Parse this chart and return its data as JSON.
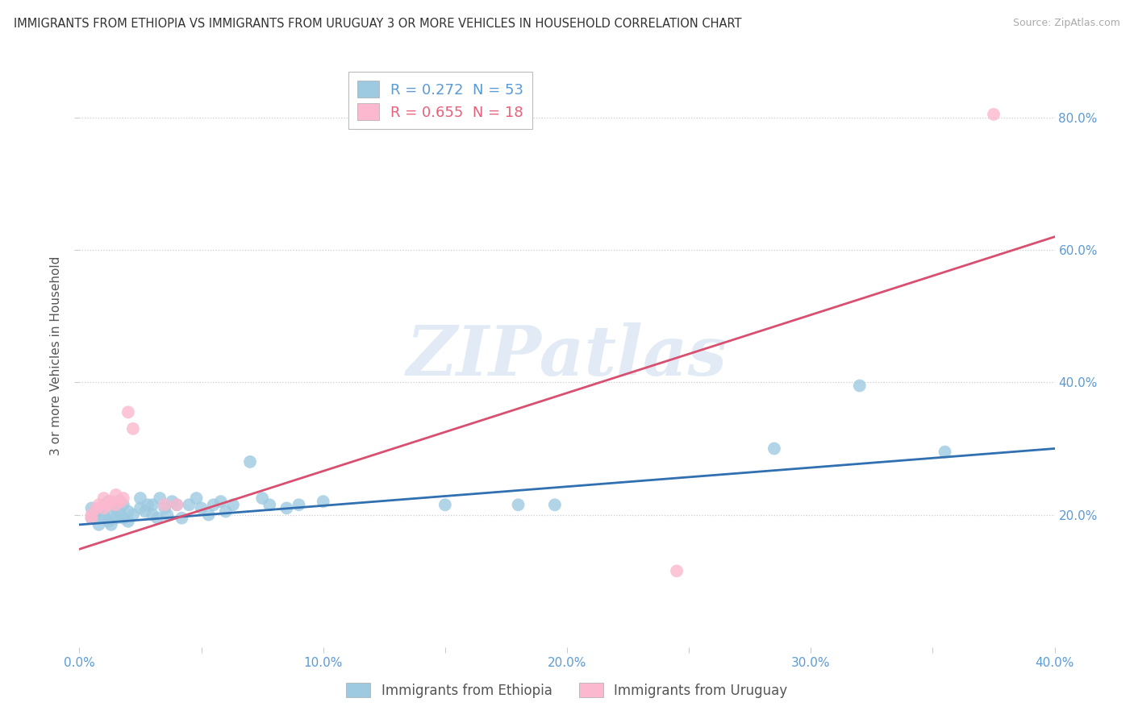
{
  "title": "IMMIGRANTS FROM ETHIOPIA VS IMMIGRANTS FROM URUGUAY 3 OR MORE VEHICLES IN HOUSEHOLD CORRELATION CHART",
  "source": "Source: ZipAtlas.com",
  "xlabel": "",
  "ylabel": "3 or more Vehicles in Household",
  "xlim": [
    0.0,
    0.4
  ],
  "ylim": [
    0.0,
    0.88
  ],
  "xticks": [
    0.0,
    0.1,
    0.2,
    0.3,
    0.4
  ],
  "yticks": [
    0.2,
    0.4,
    0.6,
    0.8
  ],
  "ytick_labels": [
    "20.0%",
    "40.0%",
    "60.0%",
    "80.0%"
  ],
  "xtick_labels": [
    "0.0%",
    "",
    "10.0%",
    "",
    "20.0%",
    "",
    "30.0%",
    "",
    "40.0%"
  ],
  "xticks_all": [
    0.0,
    0.05,
    0.1,
    0.15,
    0.2,
    0.25,
    0.3,
    0.35,
    0.4
  ],
  "watermark": "ZIPatlas",
  "legend_entries": [
    {
      "label": "R = 0.272  N = 53",
      "color": "#5b9bd5"
    },
    {
      "label": "R = 0.655  N = 18",
      "color": "#e8607a"
    }
  ],
  "ethiopia_color": "#9ecae1",
  "uruguay_color": "#fcb8ce",
  "ethiopia_line_color": "#3070b0",
  "uruguay_line_color": "#d94f70",
  "background_color": "#ffffff",
  "grid_color": "#cccccc",
  "ethiopia_scatter": [
    [
      0.005,
      0.195
    ],
    [
      0.005,
      0.21
    ],
    [
      0.007,
      0.205
    ],
    [
      0.008,
      0.185
    ],
    [
      0.01,
      0.2
    ],
    [
      0.01,
      0.215
    ],
    [
      0.01,
      0.195
    ],
    [
      0.012,
      0.22
    ],
    [
      0.012,
      0.19
    ],
    [
      0.013,
      0.185
    ],
    [
      0.014,
      0.2
    ],
    [
      0.015,
      0.21
    ],
    [
      0.015,
      0.195
    ],
    [
      0.016,
      0.22
    ],
    [
      0.017,
      0.2
    ],
    [
      0.018,
      0.195
    ],
    [
      0.018,
      0.215
    ],
    [
      0.02,
      0.205
    ],
    [
      0.02,
      0.19
    ],
    [
      0.022,
      0.2
    ],
    [
      0.025,
      0.21
    ],
    [
      0.025,
      0.225
    ],
    [
      0.027,
      0.205
    ],
    [
      0.028,
      0.215
    ],
    [
      0.03,
      0.2
    ],
    [
      0.03,
      0.215
    ],
    [
      0.032,
      0.195
    ],
    [
      0.033,
      0.225
    ],
    [
      0.035,
      0.21
    ],
    [
      0.036,
      0.2
    ],
    [
      0.038,
      0.22
    ],
    [
      0.04,
      0.215
    ],
    [
      0.042,
      0.195
    ],
    [
      0.045,
      0.215
    ],
    [
      0.048,
      0.225
    ],
    [
      0.05,
      0.21
    ],
    [
      0.053,
      0.2
    ],
    [
      0.055,
      0.215
    ],
    [
      0.058,
      0.22
    ],
    [
      0.06,
      0.205
    ],
    [
      0.063,
      0.215
    ],
    [
      0.07,
      0.28
    ],
    [
      0.075,
      0.225
    ],
    [
      0.078,
      0.215
    ],
    [
      0.085,
      0.21
    ],
    [
      0.09,
      0.215
    ],
    [
      0.1,
      0.22
    ],
    [
      0.15,
      0.215
    ],
    [
      0.18,
      0.215
    ],
    [
      0.195,
      0.215
    ],
    [
      0.285,
      0.3
    ],
    [
      0.32,
      0.395
    ],
    [
      0.355,
      0.295
    ]
  ],
  "uruguay_scatter": [
    [
      0.005,
      0.195
    ],
    [
      0.005,
      0.2
    ],
    [
      0.007,
      0.21
    ],
    [
      0.008,
      0.215
    ],
    [
      0.01,
      0.21
    ],
    [
      0.01,
      0.225
    ],
    [
      0.012,
      0.215
    ],
    [
      0.013,
      0.22
    ],
    [
      0.015,
      0.23
    ],
    [
      0.015,
      0.215
    ],
    [
      0.017,
      0.22
    ],
    [
      0.018,
      0.225
    ],
    [
      0.02,
      0.355
    ],
    [
      0.022,
      0.33
    ],
    [
      0.035,
      0.215
    ],
    [
      0.04,
      0.215
    ],
    [
      0.375,
      0.805
    ],
    [
      0.245,
      0.115
    ]
  ],
  "eth_line_x0": 0.0,
  "eth_line_y0": 0.185,
  "eth_line_x1": 0.4,
  "eth_line_y1": 0.3,
  "uru_line_x0": 0.0,
  "uru_line_y0": 0.148,
  "uru_line_x1": 0.4,
  "uru_line_y1": 0.62
}
